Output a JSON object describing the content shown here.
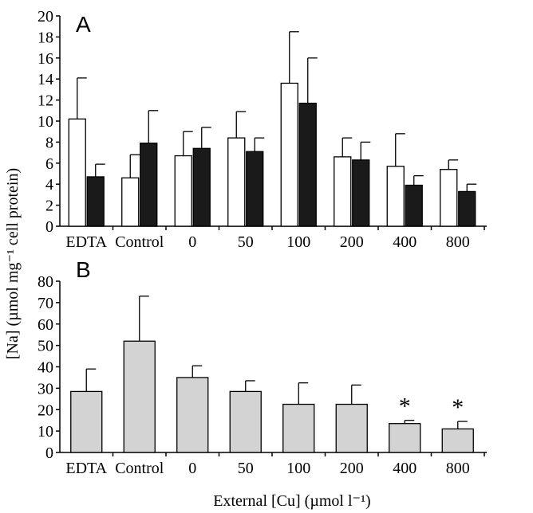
{
  "ylabel": "[Na] (µmol mg⁻¹ cell protein)",
  "xlabel": "External [Cu] (µmol l⁻¹)",
  "chart_data": [
    {
      "type": "bar",
      "panel": "A",
      "categories": [
        "EDTA",
        "Control",
        "0",
        "50",
        "100",
        "200",
        "400",
        "800"
      ],
      "ylim": [
        0,
        20
      ],
      "yticks": [
        0,
        2,
        4,
        6,
        8,
        10,
        12,
        14,
        16,
        18,
        20
      ],
      "grid": false,
      "series": [
        {
          "color": "#ffffff",
          "values": [
            10.2,
            4.6,
            6.7,
            8.4,
            13.6,
            6.6,
            5.7,
            5.4
          ],
          "errors": [
            3.9,
            2.2,
            2.3,
            2.5,
            4.9,
            1.8,
            3.1,
            0.9
          ]
        },
        {
          "color": "#1a1a1a",
          "values": [
            4.7,
            7.9,
            7.4,
            7.1,
            11.7,
            6.3,
            3.9,
            3.3
          ],
          "errors": [
            1.2,
            3.1,
            2.0,
            1.3,
            4.3,
            1.7,
            0.9,
            0.7
          ]
        }
      ]
    },
    {
      "type": "bar",
      "panel": "B",
      "categories": [
        "EDTA",
        "Control",
        "0",
        "50",
        "100",
        "200",
        "400",
        "800"
      ],
      "ylim": [
        0,
        80
      ],
      "yticks": [
        0,
        10,
        20,
        30,
        40,
        50,
        60,
        70,
        80
      ],
      "grid": false,
      "series": [
        {
          "color": "#d3d3d3",
          "values": [
            28.5,
            52.0,
            35.0,
            28.5,
            22.5,
            22.5,
            13.5,
            11.0
          ],
          "errors": [
            10.5,
            21.0,
            5.5,
            5.0,
            10.0,
            9.0,
            1.5,
            3.5
          ]
        }
      ],
      "annotations": [
        "",
        "",
        "",
        "",
        "",
        "",
        "*",
        "*"
      ]
    }
  ]
}
